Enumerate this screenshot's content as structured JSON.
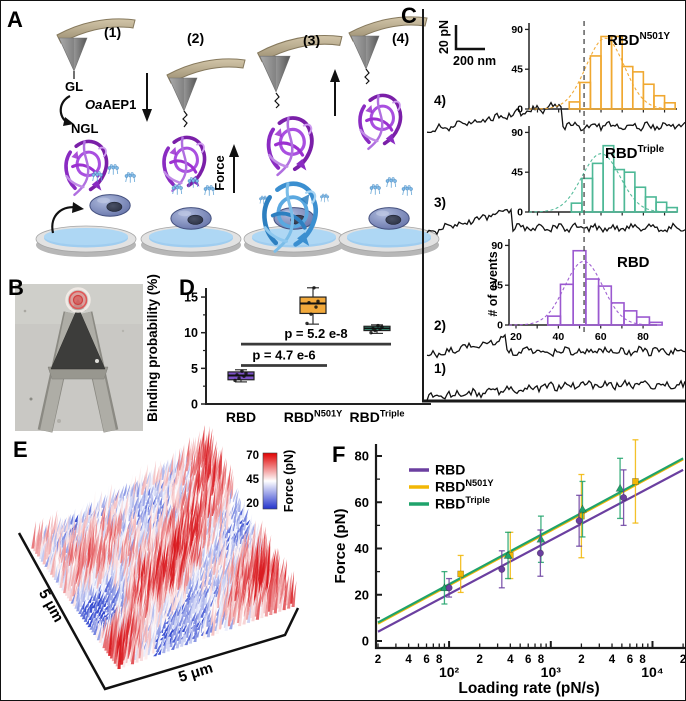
{
  "figure": {
    "panels": {
      "A": {
        "label": "A",
        "stages": [
          "(1)",
          "(2)",
          "(3)",
          "(4)"
        ],
        "gl_label": "GL",
        "ngl_label": "NGL",
        "enzyme_italic": "Oa",
        "enzyme_rest": "AEP1",
        "force_label": "Force"
      },
      "B": {
        "label": "B"
      },
      "C": {
        "label": "C",
        "scalebar_force": "20 pN",
        "scalebar_dist": "200 nm",
        "curves": [
          {
            "label": "4)",
            "baseline": 120,
            "rise": 26,
            "rupture": 0.52,
            "seed": 11
          },
          {
            "label": "3)",
            "baseline": 222,
            "rise": 22,
            "rupture": 0.33,
            "seed": 22
          },
          {
            "label": "2)",
            "baseline": 345,
            "rise": 18,
            "rupture": 0.31,
            "seed": 33
          },
          {
            "label": "1)",
            "baseline": 388,
            "rise": 12,
            "rupture": null,
            "seed": 44
          }
        ]
      },
      "D": {
        "label": "D"
      },
      "E": {
        "label": "E",
        "x_axis_label": "5 μm",
        "y_axis_label": "5 μm",
        "colorbar": {
          "ticks": [
            "70",
            "45",
            "20"
          ],
          "label": "Force (pN)",
          "top_color": "#e00000",
          "mid_color": "#ffffff",
          "bottom_color": "#2333cc"
        }
      },
      "F": {
        "label": "F"
      }
    }
  },
  "chart_data": [
    {
      "id": "histogram_rbd_n501y",
      "type": "bar",
      "title": {
        "base": "RBD",
        "sup": "N501Y"
      },
      "color": "#F0A830",
      "yticks": [
        0,
        45,
        90
      ],
      "ylim": [
        0,
        95
      ],
      "bin_start": 45,
      "bin_width": 5,
      "values": [
        8,
        30,
        60,
        82,
        82,
        48,
        42,
        28,
        15,
        7
      ],
      "fit": {
        "mean": 62,
        "sd": 9,
        "amp": 80
      },
      "dash_x": 52
    },
    {
      "id": "histogram_rbd_triple",
      "type": "bar",
      "title": {
        "base": "RBD",
        "sup": "Triple"
      },
      "color": "#4DB896",
      "yticks": [
        0,
        45,
        90
      ],
      "ylim": [
        0,
        95
      ],
      "bin_start": 46,
      "bin_width": 5,
      "values": [
        10,
        38,
        55,
        75,
        48,
        45,
        28,
        17,
        11,
        5
      ],
      "fit": {
        "mean": 60,
        "sd": 9,
        "amp": 66
      },
      "dash_x": 52
    },
    {
      "id": "histogram_rbd",
      "type": "bar",
      "title": {
        "base": "RBD",
        "sup": ""
      },
      "color": "#9B59D0",
      "ylabel": "# of events",
      "yticks": [
        0,
        45,
        90
      ],
      "ylim": [
        0,
        95
      ],
      "xticks": [
        20,
        40,
        60,
        80
      ],
      "bin_start": 35,
      "bin_width": 6,
      "values": [
        10,
        46,
        84,
        52,
        44,
        25,
        16,
        9,
        3
      ],
      "fit": {
        "mean": 52,
        "sd": 9,
        "amp": 72
      },
      "dash_x": 52
    },
    {
      "id": "binding_probability",
      "type": "box",
      "ylabel": "Binding probability (%)",
      "yticks": [
        0,
        5,
        10,
        15
      ],
      "ylim": [
        0,
        17
      ],
      "groups": [
        {
          "label": {
            "base": "RBD",
            "sup": ""
          },
          "color": "#7C52C8",
          "whisker_low": 3.1,
          "q1": 3.4,
          "median": 4.0,
          "q3": 4.5,
          "whisker_high": 4.8,
          "points": [
            3.3,
            3.6,
            3.9,
            4.1,
            4.3,
            4.6
          ]
        },
        {
          "label": {
            "base": "RBD",
            "sup": "N501Y"
          },
          "color": "#F2A93B",
          "whisker_low": 11.2,
          "q1": 12.7,
          "median": 14.1,
          "q3": 15.0,
          "whisker_high": 16.3,
          "points": [
            11.3,
            12.6,
            13.6,
            14.2,
            14.4,
            16.3
          ]
        },
        {
          "label": {
            "base": "RBD",
            "sup": "Triple"
          },
          "color": "#4DC8A4",
          "whisker_low": 9.9,
          "q1": 10.3,
          "median": 10.6,
          "q3": 10.9,
          "whisker_high": 11.1,
          "points": [
            10.0,
            10.3,
            10.5,
            10.6,
            10.8,
            11.0
          ]
        }
      ],
      "significance": [
        {
          "from": 0,
          "to": 1,
          "y": 5.4,
          "text": "p = 4.7 e-6"
        },
        {
          "from": 0,
          "to": 2,
          "y": 8.4,
          "text": "p = 5.2 e-8"
        }
      ]
    },
    {
      "id": "force_map",
      "type": "heatmap",
      "xlabel": "5 μm",
      "ylabel": "5 μm",
      "colorbar_ticks": [
        70,
        45,
        20
      ],
      "colorbar_label": "Force (pN)",
      "value_range": [
        20,
        70
      ]
    },
    {
      "id": "dynamic_force_spectroscopy",
      "type": "scatter",
      "xlabel": "Loading rate (pN/s)",
      "ylabel": "Force (pN)",
      "xscale": "log",
      "xlim": [
        20,
        20000
      ],
      "ylim": [
        0,
        85
      ],
      "yticks": [
        0,
        20,
        40,
        60,
        80
      ],
      "x_major_labels": [
        "10²",
        "10³",
        "10⁴"
      ],
      "x_minor_label_values": [
        2,
        4,
        6,
        8
      ],
      "series": [
        {
          "name": {
            "base": "RBD",
            "sup": ""
          },
          "color": "#6B3FA0",
          "marker": "circle",
          "x": [
            100,
            330,
            790,
            1900,
            5200
          ],
          "y": [
            23,
            31,
            38,
            52,
            62
          ],
          "yerr": [
            4,
            8,
            10,
            11,
            12
          ],
          "fit": {
            "x1": 20,
            "y1": 4,
            "x2": 20000,
            "y2": 74
          }
        },
        {
          "name": {
            "base": "RBD",
            "sup": "N501Y"
          },
          "color": "#F2B705",
          "marker": "square",
          "x": [
            130,
            400,
            2000,
            6800
          ],
          "y": [
            29,
            37,
            54,
            69
          ],
          "yerr": [
            8,
            10,
            18,
            18
          ],
          "fit": {
            "x1": 20,
            "y1": 7.5,
            "x2": 20000,
            "y2": 78.5
          }
        },
        {
          "name": {
            "base": "RBD",
            "sup": "Triple"
          },
          "color": "#1FA36B",
          "marker": "triangle",
          "x": [
            90,
            380,
            800,
            2050,
            4800
          ],
          "y": [
            23,
            37,
            44,
            57,
            66
          ],
          "yerr": [
            7,
            10,
            10,
            12,
            13
          ],
          "fit": {
            "x1": 20,
            "y1": 8,
            "x2": 20000,
            "y2": 79
          }
        }
      ]
    }
  ]
}
